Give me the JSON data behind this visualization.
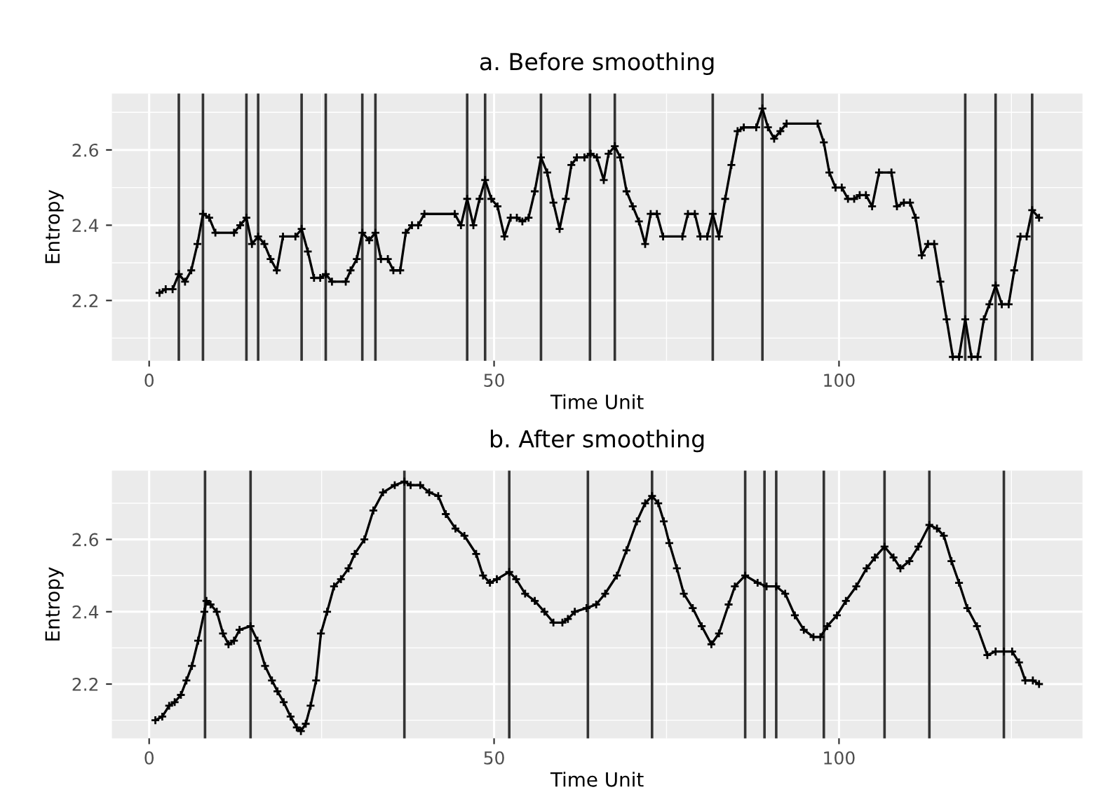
{
  "chart_data": [
    {
      "type": "line",
      "title": "a. Before smoothing",
      "xlabel": "Time Unit",
      "ylabel": "Entropy",
      "xlim": [
        -5.4,
        135.3
      ],
      "ylim": [
        2.04,
        2.75
      ],
      "xticks": [
        0,
        50,
        100
      ],
      "yticks": [
        2.2,
        2.4,
        2.6
      ],
      "grid": true,
      "marker": "cross",
      "line_style": "solid",
      "series": [
        {
          "color": "#000000",
          "x": [
            1.5,
            2.4,
            3.4,
            4.3,
            5.2,
            6.1,
            7.0,
            7.8,
            8.7,
            9.6,
            12.3,
            13.2,
            14.1,
            14.9,
            15.8,
            16.7,
            17.6,
            18.5,
            19.4,
            21.2,
            22.1,
            23.0,
            23.9,
            24.8,
            25.6,
            26.5,
            28.5,
            29.2,
            30.1,
            30.9,
            31.9,
            32.8,
            33.6,
            34.6,
            35.4,
            36.4,
            37.2,
            38.1,
            39.0,
            39.9,
            44.3,
            45.2,
            46.1,
            47.0,
            47.9,
            48.7,
            49.6,
            50.5,
            51.5,
            52.4,
            53.3,
            54.1,
            55.0,
            55.9,
            56.8,
            57.7,
            58.6,
            59.5,
            60.4,
            61.2,
            62.0,
            63.1,
            64.0,
            64.9,
            65.9,
            66.6,
            67.5,
            68.3,
            69.2,
            70.1,
            71.0,
            71.9,
            72.7,
            73.6,
            74.5,
            77.3,
            78.1,
            79.1,
            79.9,
            80.9,
            81.7,
            82.6,
            83.5,
            84.4,
            85.3,
            86.2,
            88.0,
            88.9,
            89.7,
            90.6,
            91.5,
            92.4,
            96.9,
            97.8,
            98.6,
            99.5,
            100.4,
            101.3,
            102.2,
            103.0,
            103.9,
            104.8,
            105.8,
            107.6,
            108.4,
            109.4,
            110.3,
            111.1,
            112.0,
            112.9,
            113.8,
            114.7,
            115.6,
            116.5,
            117.4,
            118.3,
            119.2,
            120.1,
            121.0,
            121.8,
            122.7,
            123.6,
            124.6,
            125.4,
            126.3,
            127.2,
            128.0,
            129.0
          ],
          "values": [
            2.22,
            2.23,
            2.23,
            2.27,
            2.25,
            2.28,
            2.35,
            2.43,
            2.42,
            2.38,
            2.38,
            2.4,
            2.42,
            2.35,
            2.37,
            2.35,
            2.31,
            2.28,
            2.37,
            2.37,
            2.39,
            2.33,
            2.26,
            2.26,
            2.27,
            2.25,
            2.25,
            2.28,
            2.31,
            2.38,
            2.36,
            2.38,
            2.31,
            2.31,
            2.28,
            2.28,
            2.38,
            2.4,
            2.4,
            2.43,
            2.43,
            2.4,
            2.47,
            2.4,
            2.47,
            2.52,
            2.47,
            2.45,
            2.37,
            2.42,
            2.42,
            2.41,
            2.42,
            2.49,
            2.58,
            2.54,
            2.46,
            2.39,
            2.47,
            2.56,
            2.58,
            2.58,
            2.59,
            2.58,
            2.52,
            2.59,
            2.61,
            2.58,
            2.49,
            2.45,
            2.41,
            2.35,
            2.43,
            2.43,
            2.37,
            2.37,
            2.43,
            2.43,
            2.37,
            2.37,
            2.43,
            2.37,
            2.47,
            2.56,
            2.65,
            2.66,
            2.66,
            2.71,
            2.66,
            2.63,
            2.65,
            2.67,
            2.67,
            2.62,
            2.54,
            2.5,
            2.5,
            2.47,
            2.47,
            2.48,
            2.48,
            2.45,
            2.54,
            2.54,
            2.45,
            2.46,
            2.46,
            2.42,
            2.32,
            2.35,
            2.35,
            2.25,
            2.15,
            2.05,
            2.05,
            2.15,
            2.05,
            2.05,
            2.15,
            2.19,
            2.24,
            2.19,
            2.19,
            2.28,
            2.37,
            2.37,
            2.44,
            2.42
          ]
        }
      ],
      "ref_lines": [
        {
          "axis": "x",
          "value": 4.3,
          "color": "#333333"
        },
        {
          "axis": "x",
          "value": 7.8,
          "color": "#333333"
        },
        {
          "axis": "x",
          "value": 14.1,
          "color": "#333333"
        },
        {
          "axis": "x",
          "value": 15.8,
          "color": "#333333"
        },
        {
          "axis": "x",
          "value": 22.1,
          "color": "#333333"
        },
        {
          "axis": "x",
          "value": 25.6,
          "color": "#333333"
        },
        {
          "axis": "x",
          "value": 30.9,
          "color": "#333333"
        },
        {
          "axis": "x",
          "value": 32.8,
          "color": "#333333"
        },
        {
          "axis": "x",
          "value": 46.1,
          "color": "#333333"
        },
        {
          "axis": "x",
          "value": 48.7,
          "color": "#333333"
        },
        {
          "axis": "x",
          "value": 56.8,
          "color": "#333333"
        },
        {
          "axis": "x",
          "value": 63.9,
          "color": "#333333"
        },
        {
          "axis": "x",
          "value": 67.5,
          "color": "#333333"
        },
        {
          "axis": "x",
          "value": 81.7,
          "color": "#333333"
        },
        {
          "axis": "x",
          "value": 88.9,
          "color": "#333333"
        },
        {
          "axis": "x",
          "value": 118.3,
          "color": "#333333"
        },
        {
          "axis": "x",
          "value": 122.7,
          "color": "#333333"
        },
        {
          "axis": "x",
          "value": 128.0,
          "color": "#333333"
        }
      ]
    },
    {
      "type": "line",
      "title": "b. After smoothing",
      "xlabel": "Time Unit",
      "ylabel": "Entropy",
      "xlim": [
        -5.4,
        135.3
      ],
      "ylim": [
        2.05,
        2.79
      ],
      "xticks": [
        0,
        50,
        100
      ],
      "yticks": [
        2.2,
        2.4,
        2.6
      ],
      "grid": true,
      "marker": "cross",
      "line_style": "solid",
      "series": [
        {
          "color": "#000000",
          "x": [
            0.9,
            1.9,
            2.9,
            3.7,
            4.6,
            5.4,
            6.2,
            7.1,
            8.0,
            8.3,
            8.9,
            9.8,
            10.7,
            11.5,
            12.3,
            13.1,
            14.7,
            15.7,
            16.8,
            17.8,
            18.6,
            19.5,
            20.5,
            21.4,
            22.0,
            22.7,
            23.4,
            24.2,
            24.9,
            25.8,
            26.8,
            27.8,
            28.9,
            29.8,
            31.2,
            32.5,
            33.9,
            35.6,
            37.0,
            37.9,
            39.3,
            40.6,
            41.9,
            43.0,
            44.4,
            45.7,
            47.4,
            48.4,
            49.4,
            50.4,
            52.2,
            53.2,
            54.5,
            55.9,
            57.3,
            58.6,
            59.9,
            60.7,
            61.7,
            63.4,
            64.8,
            66.1,
            67.8,
            69.2,
            70.7,
            71.9,
            72.9,
            73.8,
            74.6,
            75.4,
            76.5,
            77.5,
            78.8,
            80.1,
            81.5,
            82.6,
            84.0,
            84.9,
            86.4,
            88.2,
            89.5,
            90.9,
            92.2,
            93.6,
            94.9,
            96.3,
            97.3,
            98.3,
            99.7,
            101.0,
            102.5,
            104.0,
            105.2,
            106.6,
            107.9,
            108.9,
            110.2,
            111.5,
            113.1,
            114.2,
            115.2,
            116.3,
            117.4,
            118.6,
            120.0,
            121.5,
            122.7,
            123.9,
            125.1,
            126.1,
            127.0,
            128.1,
            129.0
          ],
          "values": [
            2.1,
            2.11,
            2.14,
            2.15,
            2.17,
            2.21,
            2.25,
            2.32,
            2.4,
            2.43,
            2.42,
            2.4,
            2.34,
            2.31,
            2.32,
            2.35,
            2.36,
            2.32,
            2.25,
            2.21,
            2.18,
            2.15,
            2.11,
            2.08,
            2.07,
            2.09,
            2.14,
            2.21,
            2.34,
            2.4,
            2.47,
            2.49,
            2.52,
            2.56,
            2.6,
            2.68,
            2.73,
            2.75,
            2.76,
            2.75,
            2.75,
            2.73,
            2.72,
            2.67,
            2.63,
            2.61,
            2.56,
            2.5,
            2.48,
            2.49,
            2.51,
            2.49,
            2.45,
            2.43,
            2.4,
            2.37,
            2.37,
            2.38,
            2.4,
            2.41,
            2.42,
            2.45,
            2.5,
            2.57,
            2.65,
            2.7,
            2.72,
            2.7,
            2.65,
            2.59,
            2.52,
            2.45,
            2.41,
            2.36,
            2.31,
            2.34,
            2.42,
            2.47,
            2.5,
            2.48,
            2.47,
            2.47,
            2.45,
            2.39,
            2.35,
            2.33,
            2.33,
            2.36,
            2.39,
            2.43,
            2.47,
            2.52,
            2.55,
            2.58,
            2.55,
            2.52,
            2.54,
            2.58,
            2.64,
            2.63,
            2.61,
            2.54,
            2.48,
            2.41,
            2.36,
            2.28,
            2.29,
            2.29,
            2.29,
            2.26,
            2.21,
            2.21,
            2.2
          ]
        }
      ],
      "ref_lines": [
        {
          "axis": "x",
          "value": 8.1,
          "color": "#333333"
        },
        {
          "axis": "x",
          "value": 14.7,
          "color": "#333333"
        },
        {
          "axis": "x",
          "value": 37.0,
          "color": "#333333"
        },
        {
          "axis": "x",
          "value": 52.2,
          "color": "#333333"
        },
        {
          "axis": "x",
          "value": 63.6,
          "color": "#333333"
        },
        {
          "axis": "x",
          "value": 72.9,
          "color": "#333333"
        },
        {
          "axis": "x",
          "value": 86.4,
          "color": "#333333"
        },
        {
          "axis": "x",
          "value": 89.2,
          "color": "#333333"
        },
        {
          "axis": "x",
          "value": 90.9,
          "color": "#333333"
        },
        {
          "axis": "x",
          "value": 97.8,
          "color": "#333333"
        },
        {
          "axis": "x",
          "value": 106.6,
          "color": "#333333"
        },
        {
          "axis": "x",
          "value": 113.1,
          "color": "#333333"
        },
        {
          "axis": "x",
          "value": 123.9,
          "color": "#333333"
        }
      ]
    }
  ]
}
